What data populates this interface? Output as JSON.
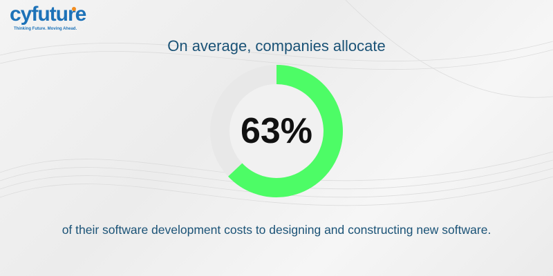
{
  "brand": {
    "name": "cyfuture",
    "tagline": "Thinking Future. Moving Ahead."
  },
  "headline": "On average, companies allocate",
  "stat": {
    "label": "63%",
    "value": 63,
    "fill_color": "#4dfc66",
    "track_color": "#e8e8e8"
  },
  "footline": "of their software development costs to designing and constructing new software."
}
